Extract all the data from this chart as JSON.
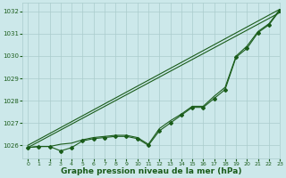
{
  "background_color": "#cce8ea",
  "grid_color": "#aacccc",
  "line_color": "#1a5c1a",
  "xlabel": "Graphe pression niveau de la mer (hPa)",
  "xlabel_fontsize": 6.5,
  "xlim": [
    -0.5,
    23
  ],
  "ylim": [
    1025.4,
    1032.4
  ],
  "yticks": [
    1026,
    1027,
    1028,
    1029,
    1030,
    1031,
    1032
  ],
  "xticks": [
    0,
    1,
    2,
    3,
    4,
    5,
    6,
    7,
    8,
    9,
    10,
    11,
    12,
    13,
    14,
    15,
    16,
    17,
    18,
    19,
    20,
    21,
    22,
    23
  ],
  "series_straight1": [
    [
      0,
      1026.0
    ],
    [
      23,
      1032.1
    ]
  ],
  "series_straight2": [
    [
      0,
      1025.9
    ],
    [
      23,
      1031.95
    ]
  ],
  "series_main": [
    1025.9,
    1025.95,
    1025.95,
    1025.75,
    1025.9,
    1026.2,
    1026.3,
    1026.35,
    1026.4,
    1026.4,
    1026.3,
    1026.0,
    1026.65,
    1027.0,
    1027.35,
    1027.7,
    1027.7,
    1028.1,
    1028.5,
    1029.95,
    1030.35,
    1031.05,
    1031.4,
    1032.05
  ],
  "series_upper": [
    1025.9,
    1025.95,
    1025.95,
    1026.05,
    1026.1,
    1026.25,
    1026.35,
    1026.4,
    1026.45,
    1026.45,
    1026.35,
    1026.05,
    1026.75,
    1027.1,
    1027.4,
    1027.75,
    1027.75,
    1028.2,
    1028.6,
    1030.0,
    1030.45,
    1031.1,
    1031.45,
    1032.1
  ],
  "marker": "D",
  "markersize": 2.0,
  "linewidth": 0.8
}
